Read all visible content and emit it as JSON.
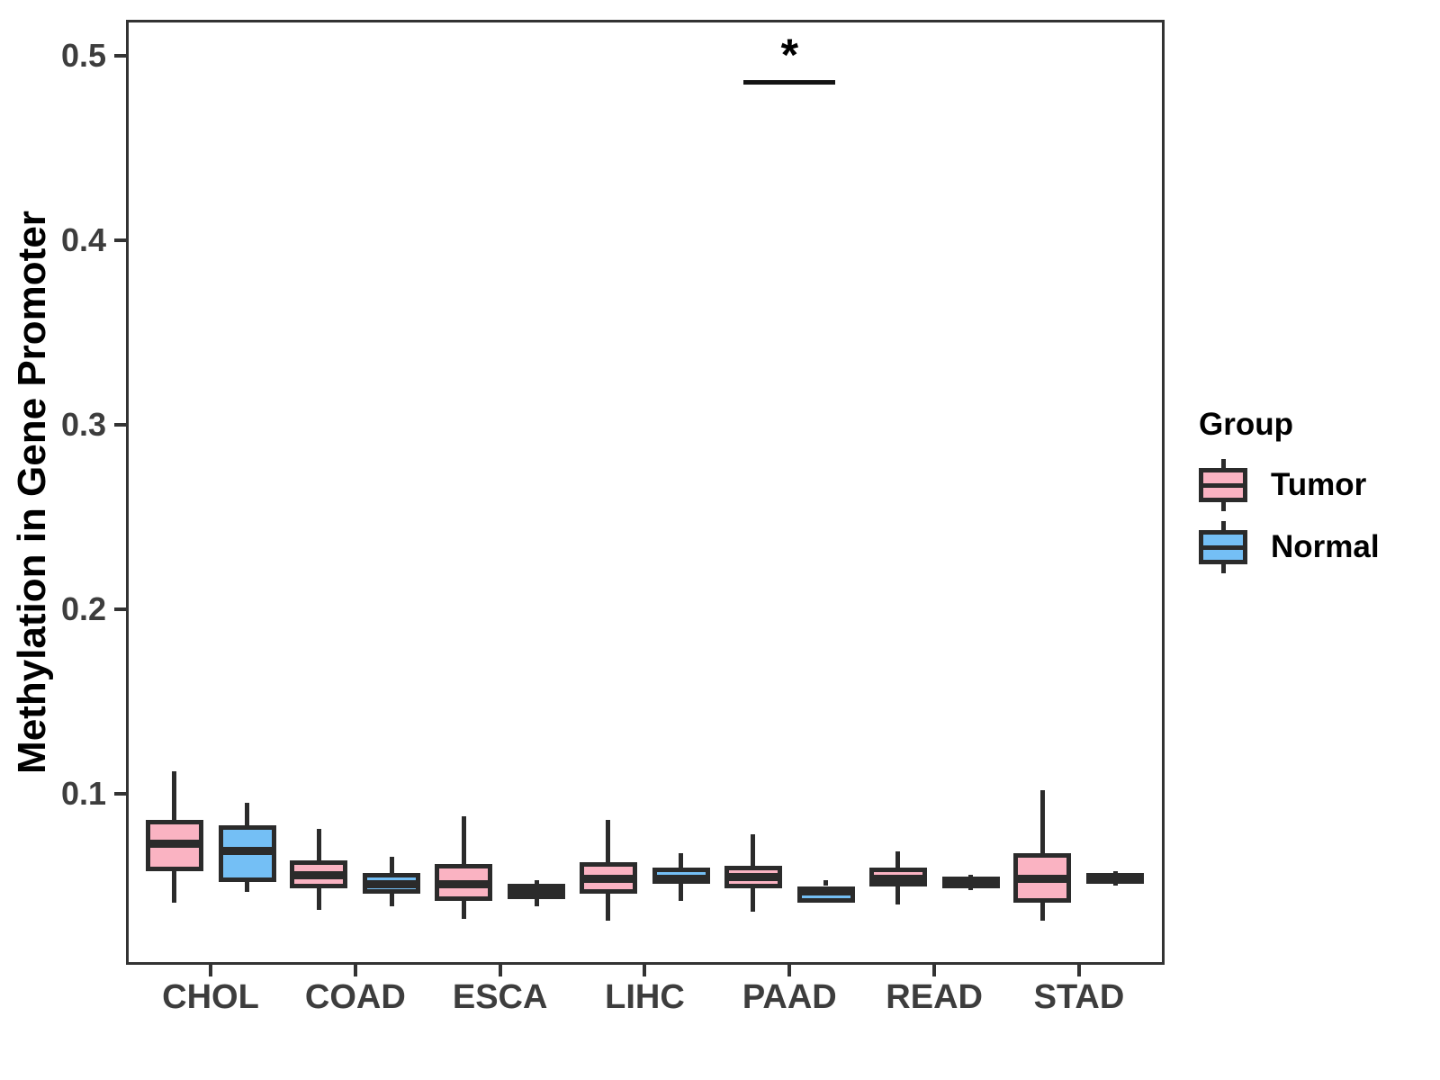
{
  "chart_data": {
    "type": "boxplot",
    "title": "",
    "ylabel": "Methylation in Gene Promoter",
    "xlabel": "",
    "grid": false,
    "ylim": [
      0.007,
      0.52
    ],
    "yticks": [
      {
        "label": "0.1",
        "value": 0.1
      },
      {
        "label": "0.2",
        "value": 0.2
      },
      {
        "label": "0.3",
        "value": 0.3
      },
      {
        "label": "0.4",
        "value": 0.4
      },
      {
        "label": "0.5",
        "value": 0.5
      }
    ],
    "categories": [
      "CHOL",
      "COAD",
      "ESCA",
      "LIHC",
      "PAAD",
      "READ",
      "STAD"
    ],
    "legend": {
      "title": "Group",
      "position": "right"
    },
    "colors": {
      "box_border": "#2b2b2b",
      "axis_line": "#333333",
      "tick_text": "#3d3d3d",
      "title_text": "#000000"
    },
    "series": [
      {
        "name": "Tumor",
        "color": "#FAB3C2",
        "stats": [
          {
            "min": 0.041,
            "q1": 0.058,
            "median": 0.073,
            "q3": 0.086,
            "max": 0.112
          },
          {
            "min": 0.037,
            "q1": 0.049,
            "median": 0.056,
            "q3": 0.064,
            "max": 0.081
          },
          {
            "min": 0.032,
            "q1": 0.042,
            "median": 0.051,
            "q3": 0.062,
            "max": 0.088
          },
          {
            "min": 0.031,
            "q1": 0.046,
            "median": 0.054,
            "q3": 0.063,
            "max": 0.086
          },
          {
            "min": 0.036,
            "q1": 0.049,
            "median": 0.055,
            "q3": 0.061,
            "max": 0.078
          },
          {
            "min": 0.04,
            "q1": 0.05,
            "median": 0.054,
            "q3": 0.06,
            "max": 0.069
          },
          {
            "min": 0.031,
            "q1": 0.041,
            "median": 0.054,
            "q3": 0.068,
            "max": 0.102
          }
        ]
      },
      {
        "name": "Normal",
        "color": "#74BFF5",
        "stats": [
          {
            "min": 0.047,
            "q1": 0.052,
            "median": 0.069,
            "q3": 0.083,
            "max": 0.095
          },
          {
            "min": 0.039,
            "q1": 0.046,
            "median": 0.051,
            "q3": 0.057,
            "max": 0.066
          },
          {
            "min": 0.039,
            "q1": 0.043,
            "median": 0.047,
            "q3": 0.051,
            "max": 0.053
          },
          {
            "min": 0.042,
            "q1": 0.051,
            "median": 0.054,
            "q3": 0.06,
            "max": 0.068
          },
          {
            "min": 0.041,
            "q1": 0.041,
            "median": 0.047,
            "q3": 0.05,
            "max": 0.053
          },
          {
            "min": 0.048,
            "q1": 0.049,
            "median": 0.052,
            "q3": 0.055,
            "max": 0.056
          },
          {
            "min": 0.05,
            "q1": 0.051,
            "median": 0.054,
            "q3": 0.057,
            "max": 0.058
          }
        ]
      }
    ],
    "annotations": [
      {
        "type": "significance",
        "label": "*",
        "category": "PAAD"
      }
    ]
  }
}
